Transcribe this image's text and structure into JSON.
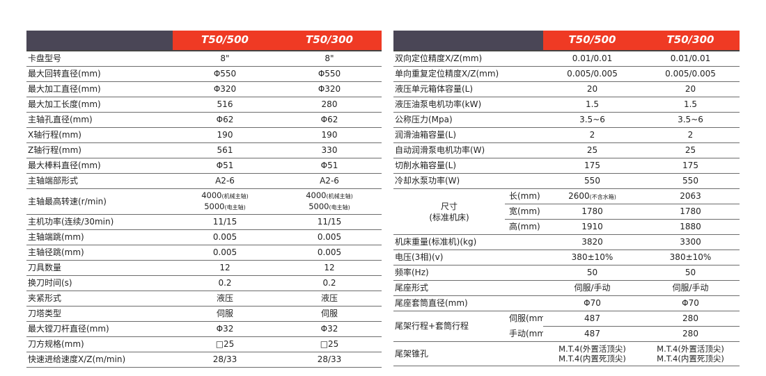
{
  "left": {
    "header": {
      "model_a": "T50/500",
      "model_b": "T50/300"
    },
    "rows": [
      {
        "label": "卡盘型号",
        "a": "8\"",
        "b": "8\""
      },
      {
        "label": "最大回转直径(mm)",
        "a": "Φ550",
        "b": "Φ550"
      },
      {
        "label": "最大加工直径(mm)",
        "a": "Φ320",
        "b": "Φ320"
      },
      {
        "label": "最大加工长度(mm)",
        "a": "516",
        "b": "280"
      },
      {
        "label": "主轴孔直径(mm)",
        "a": "Φ62",
        "b": "Φ62"
      },
      {
        "label": "X轴行程(mm)",
        "a": "190",
        "b": "190"
      },
      {
        "label": "Z轴行程(mm)",
        "a": "561",
        "b": "330"
      },
      {
        "label": "最大棒料直径(mm)",
        "a": "Φ51",
        "b": "Φ51"
      },
      {
        "label": "主轴端部形式",
        "a": "A2-6",
        "b": "A2-6"
      }
    ],
    "speed_row": {
      "label": "主轴最高转速(r/min)",
      "a_line1": "4000",
      "a_note1": "(机械主轴)",
      "a_line2": "5000",
      "a_note2": "(电主轴)",
      "b_line1": "4000",
      "b_note1": "(机械主轴)",
      "b_line2": "5000",
      "b_note2": "(电主轴)"
    },
    "rows2": [
      {
        "label": "主机功率(连续/30min)",
        "a": "11/15",
        "b": "11/15"
      },
      {
        "label": "主轴端跳(mm)",
        "a": "0.005",
        "b": "0.005"
      },
      {
        "label": "主轴径跳(mm)",
        "a": "0.005",
        "b": "0.005"
      },
      {
        "label": "刀具数量",
        "a": "12",
        "b": "12"
      },
      {
        "label": "换刀时间(s)",
        "a": "0.2",
        "b": "0.2"
      },
      {
        "label": "夹紧形式",
        "a": "液压",
        "b": "液压"
      },
      {
        "label": "刀塔类型",
        "a": "伺服",
        "b": "伺服"
      },
      {
        "label": "最大镗刀杆直径(mm)",
        "a": "Φ32",
        "b": "Φ32"
      },
      {
        "label": "刀方规格(mm)",
        "a": "□25",
        "b": "□25"
      },
      {
        "label": "快速进给速度X/Z(m/min)",
        "a": "28/33",
        "b": "28/33"
      }
    ]
  },
  "right": {
    "header": {
      "model_a": "T50/500",
      "model_b": "T50/300"
    },
    "rows": [
      {
        "label": "双向定位精度X/Z(mm)",
        "a": "0.01/0.01",
        "b": "0.01/0.01"
      },
      {
        "label": "单向重复定位精度X/Z(mm)",
        "a": "0.005/0.005",
        "b": "0.005/0.005"
      },
      {
        "label": "液压单元箱体容量(L)",
        "a": "20",
        "b": "20"
      },
      {
        "label": "液压油泵电机功率(kW)",
        "a": "1.5",
        "b": "1.5"
      },
      {
        "label": "公称压力(Mpa)",
        "a": "3.5~6",
        "b": "3.5~6"
      },
      {
        "label": "润滑油箱容量(L)",
        "a": "2",
        "b": "2"
      },
      {
        "label": "自动润滑泵电机功率(W)",
        "a": "25",
        "b": "25"
      },
      {
        "label": "切削水箱容量(L)",
        "a": "175",
        "b": "175"
      },
      {
        "label": "冷却水泵功率(W)",
        "a": "550",
        "b": "550"
      }
    ],
    "dimensions": {
      "label_line1": "尺寸",
      "label_line2": "(标准机床)",
      "items": [
        {
          "sub": "长(mm)",
          "a": "2600",
          "a_note": "(不含水箱)",
          "b": "2063"
        },
        {
          "sub": "宽(mm)",
          "a": "1780",
          "b": "1780"
        },
        {
          "sub": "高(mm)",
          "a": "1910",
          "b": "1880"
        }
      ]
    },
    "rows2": [
      {
        "label": "机床重量(标准机)(kg)",
        "a": "3820",
        "b": "3300"
      },
      {
        "label": "电压(3相)(v)",
        "a": "380±10%",
        "b": "380±10%"
      },
      {
        "label": "频率(Hz)",
        "a": "50",
        "b": "50"
      },
      {
        "label": "尾座形式",
        "a": "伺服/手动",
        "b": "伺服/手动"
      },
      {
        "label": "尾座套筒直径(mm)",
        "a": "Φ70",
        "b": "Φ70"
      }
    ],
    "tail_travel": {
      "label": "尾架行程+套筒行程",
      "items": [
        {
          "sub": "伺服(mm)",
          "a": "487",
          "b": "280"
        },
        {
          "sub": "手动(mm)",
          "a": "487",
          "b": "280"
        }
      ]
    },
    "taper": {
      "label": "尾架锥孔",
      "a_line1": "M.T.4(外置活顶尖)",
      "a_line2": "M.T.4(内置死顶尖)",
      "b_line1": "M.T.4(外置活顶尖)",
      "b_line2": "M.T.4(内置死顶尖)"
    }
  }
}
